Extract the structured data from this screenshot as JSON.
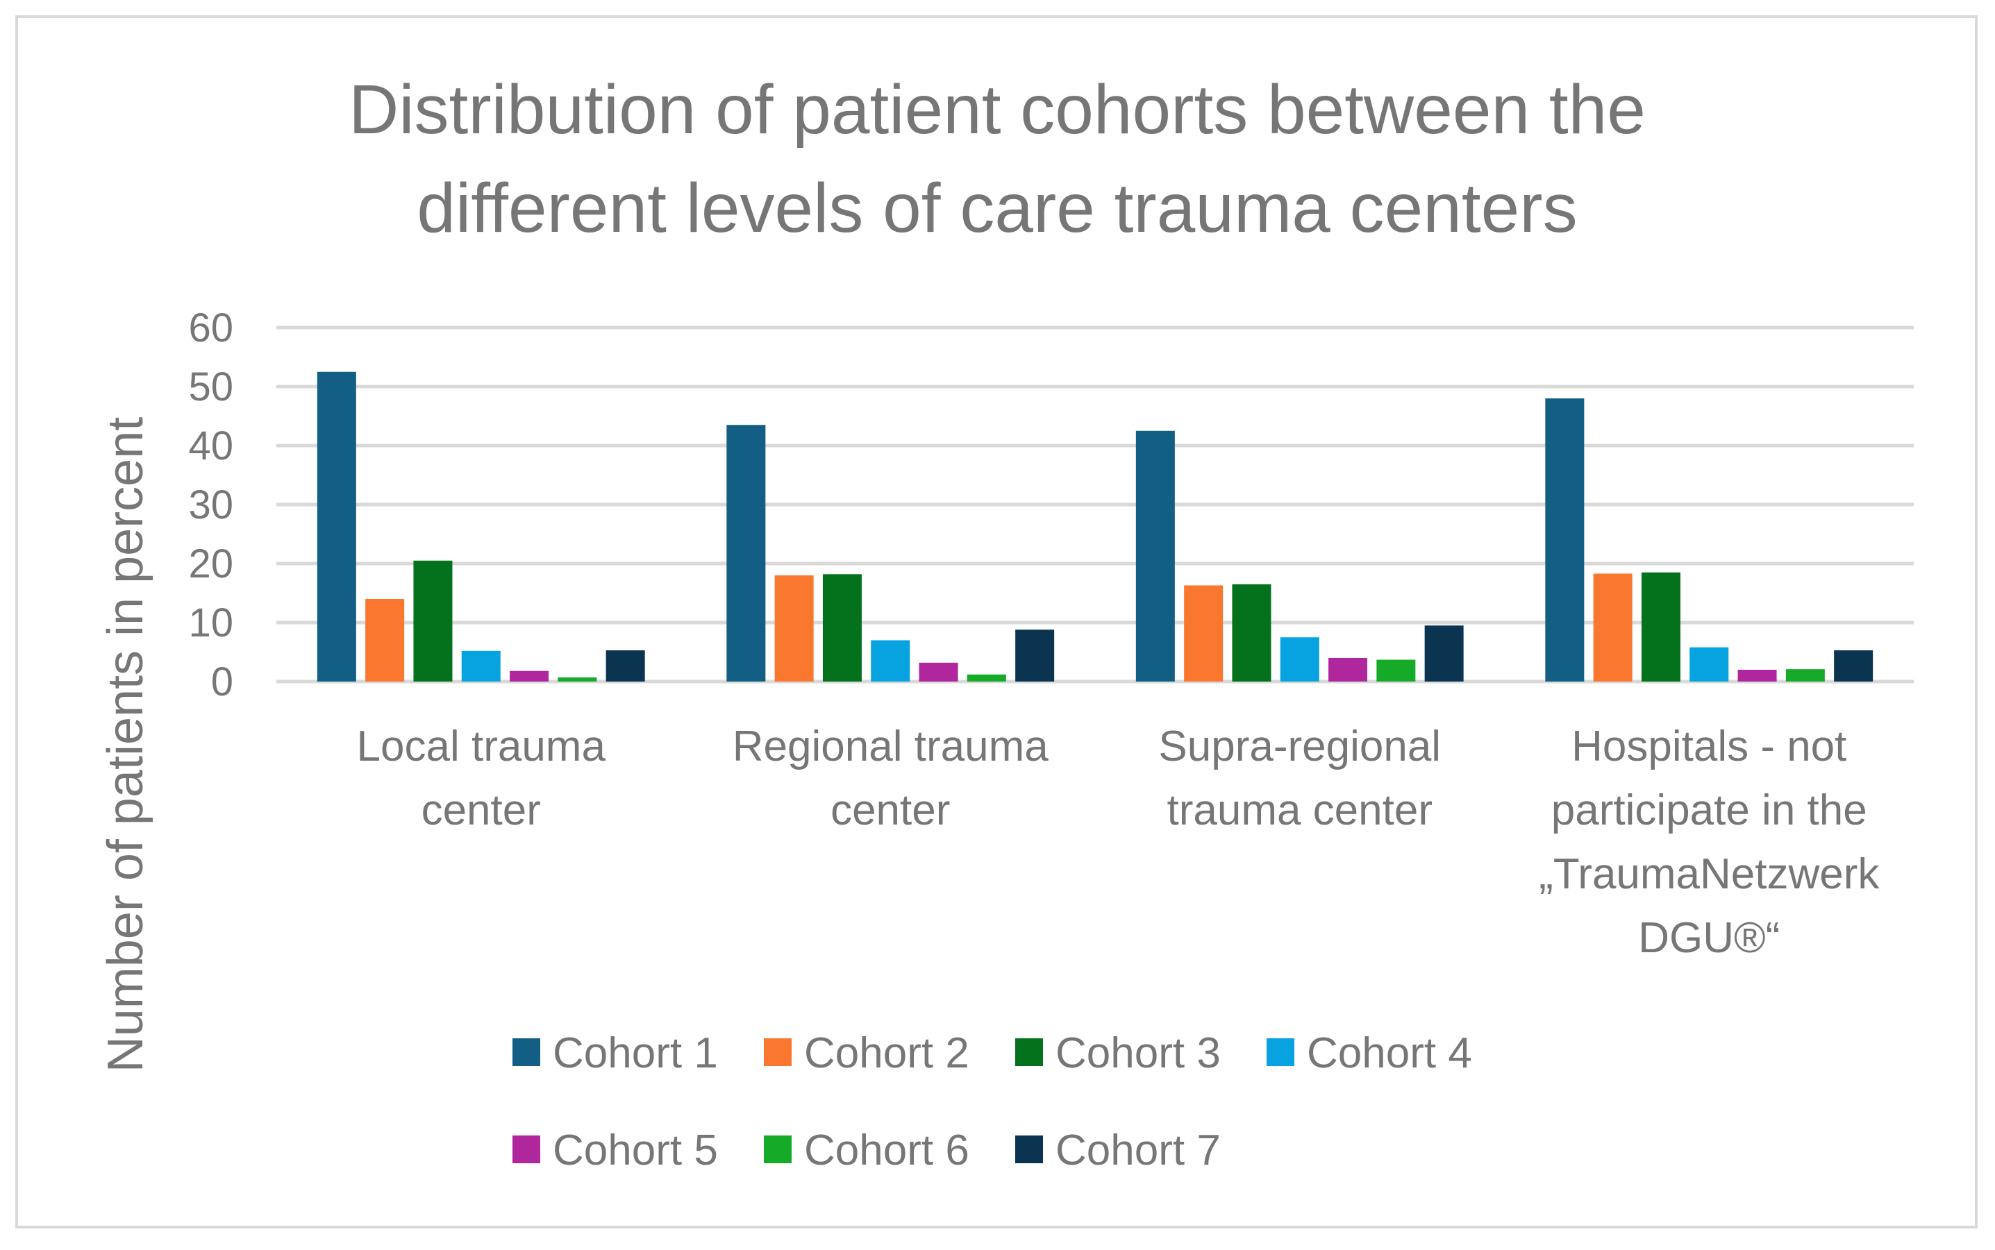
{
  "chart_data": {
    "type": "bar",
    "title_lines": [
      "Distribution of patient cohorts between the",
      "different levels of care trauma centers"
    ],
    "ylabel": "Number of patients in percent",
    "xlabel": "",
    "ylim": [
      0,
      60
    ],
    "yticks": [
      "0",
      "10",
      "20",
      "30",
      "40",
      "50",
      "60"
    ],
    "grid": true,
    "legend_position": "bottom",
    "categories": [
      [
        "Local trauma",
        "center"
      ],
      [
        "Regional trauma",
        "center"
      ],
      [
        "Supra-regional",
        "trauma center"
      ],
      [
        "Hospitals - not",
        "participate in the",
        "„TraumaNetzwerk",
        "DGU®“"
      ]
    ],
    "series": [
      {
        "name": "Cohort 1",
        "color": "#125e84",
        "values": [
          52.5,
          43.5,
          42.5,
          48
        ]
      },
      {
        "name": "Cohort 2",
        "color": "#f9772f",
        "values": [
          14,
          18,
          16.3,
          18.3
        ]
      },
      {
        "name": "Cohort 3",
        "color": "#04711d",
        "values": [
          20.5,
          18.2,
          16.5,
          18.5
        ]
      },
      {
        "name": "Cohort 4",
        "color": "#06a3e0",
        "values": [
          5.2,
          7,
          7.5,
          5.8
        ]
      },
      {
        "name": "Cohort 5",
        "color": "#b0279d",
        "values": [
          1.8,
          3.2,
          4,
          2
        ]
      },
      {
        "name": "Cohort 6",
        "color": "#15aa27",
        "values": [
          0.7,
          1.2,
          3.7,
          2.1
        ]
      },
      {
        "name": "Cohort 7",
        "color": "#0b3451",
        "values": [
          5.3,
          8.8,
          9.5,
          5.3
        ]
      }
    ]
  }
}
